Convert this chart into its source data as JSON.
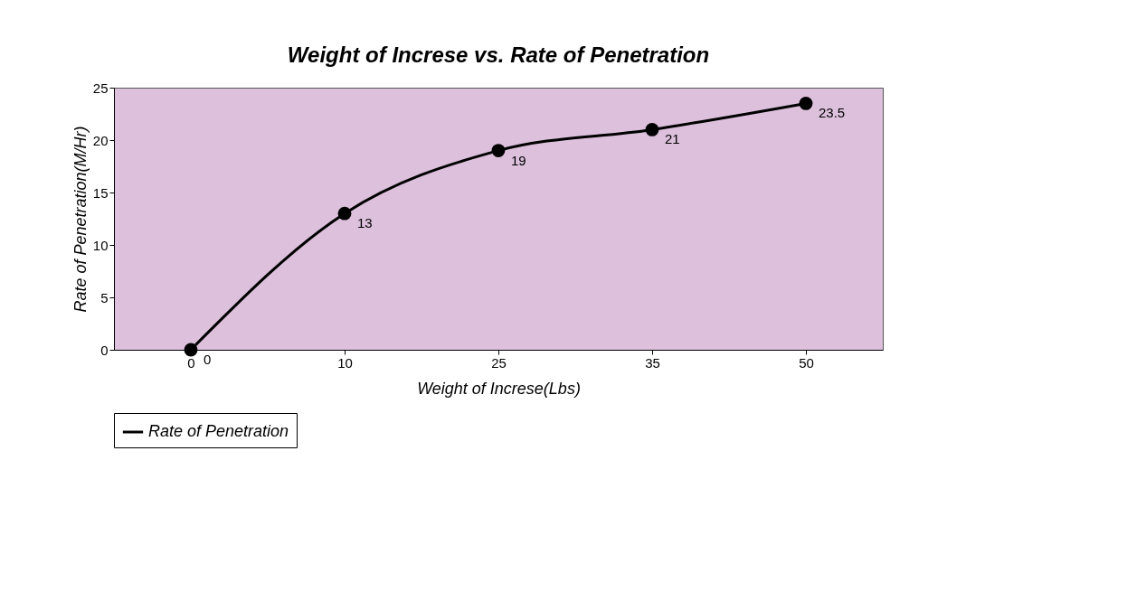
{
  "chart_data": {
    "type": "line",
    "title": "Weight of Increse   vs.  Rate of Penetration",
    "xlabel": "Weight of Increse(Lbs)",
    "ylabel": "Rate of Penetration(M/Hr)",
    "categories": [
      "0",
      "10",
      "25",
      "35",
      "50"
    ],
    "series": [
      {
        "name": "Rate of Penetration",
        "color": "#000000",
        "values": [
          0,
          13,
          19,
          21,
          23.5
        ]
      }
    ],
    "ylim": [
      0,
      25
    ],
    "yticks": [
      0,
      5,
      10,
      15,
      20,
      25
    ],
    "grid": false,
    "legend": "bottom",
    "marker": "circle",
    "line_style": "solid",
    "data_labels": true
  }
}
